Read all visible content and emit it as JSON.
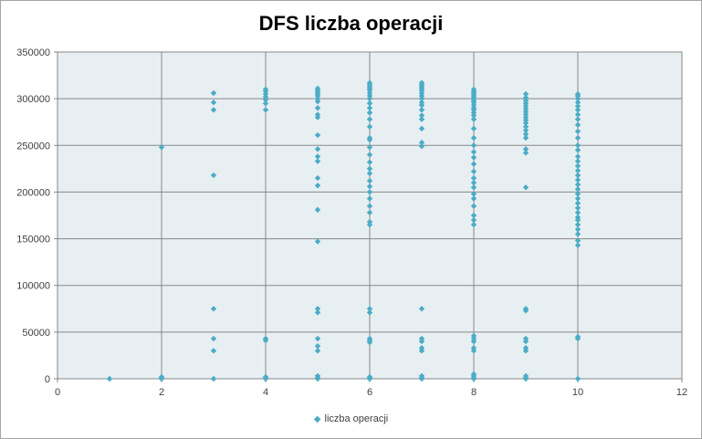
{
  "chart_data": {
    "type": "scatter",
    "title": "DFS liczba operacji",
    "xlabel": "",
    "ylabel": "",
    "xlim": [
      0,
      12
    ],
    "ylim": [
      0,
      350000
    ],
    "x_ticks": [
      "0",
      "2",
      "4",
      "6",
      "8",
      "10",
      "12"
    ],
    "y_ticks": [
      "0",
      "50000",
      "100000",
      "150000",
      "200000",
      "250000",
      "300000",
      "350000"
    ],
    "grid": true,
    "legend": "bottom",
    "marker_color": "#4bacc6",
    "series": [
      {
        "name": "liczba operacji",
        "points": [
          [
            1,
            0
          ],
          [
            2,
            0
          ],
          [
            2,
            1000
          ],
          [
            2,
            2000
          ],
          [
            2,
            248000
          ],
          [
            3,
            0
          ],
          [
            3,
            30000
          ],
          [
            3,
            43000
          ],
          [
            3,
            75000
          ],
          [
            3,
            218000
          ],
          [
            3,
            288000
          ],
          [
            3,
            296000
          ],
          [
            3,
            306000
          ],
          [
            4,
            0
          ],
          [
            4,
            1000
          ],
          [
            4,
            2000
          ],
          [
            4,
            41000
          ],
          [
            4,
            43000
          ],
          [
            4,
            288000
          ],
          [
            4,
            295000
          ],
          [
            4,
            299000
          ],
          [
            4,
            302000
          ],
          [
            4,
            305000
          ],
          [
            4,
            308000
          ],
          [
            4,
            310000
          ],
          [
            5,
            0
          ],
          [
            5,
            1000
          ],
          [
            5,
            3000
          ],
          [
            5,
            30000
          ],
          [
            5,
            35000
          ],
          [
            5,
            43000
          ],
          [
            5,
            71000
          ],
          [
            5,
            75000
          ],
          [
            5,
            147000
          ],
          [
            5,
            181000
          ],
          [
            5,
            207000
          ],
          [
            5,
            215000
          ],
          [
            5,
            233000
          ],
          [
            5,
            238000
          ],
          [
            5,
            246000
          ],
          [
            5,
            261000
          ],
          [
            5,
            280000
          ],
          [
            5,
            283000
          ],
          [
            5,
            290000
          ],
          [
            5,
            297000
          ],
          [
            5,
            300000
          ],
          [
            5,
            303000
          ],
          [
            5,
            305000
          ],
          [
            5,
            307000
          ],
          [
            5,
            309000
          ],
          [
            5,
            311000
          ],
          [
            6,
            0
          ],
          [
            6,
            1000
          ],
          [
            6,
            2000
          ],
          [
            6,
            39000
          ],
          [
            6,
            41000
          ],
          [
            6,
            43000
          ],
          [
            6,
            71000
          ],
          [
            6,
            75000
          ],
          [
            6,
            165000
          ],
          [
            6,
            168000
          ],
          [
            6,
            178000
          ],
          [
            6,
            185000
          ],
          [
            6,
            193000
          ],
          [
            6,
            200000
          ],
          [
            6,
            206000
          ],
          [
            6,
            212000
          ],
          [
            6,
            220000
          ],
          [
            6,
            225000
          ],
          [
            6,
            232000
          ],
          [
            6,
            240000
          ],
          [
            6,
            248000
          ],
          [
            6,
            256000
          ],
          [
            6,
            258000
          ],
          [
            6,
            270000
          ],
          [
            6,
            278000
          ],
          [
            6,
            285000
          ],
          [
            6,
            290000
          ],
          [
            6,
            295000
          ],
          [
            6,
            300000
          ],
          [
            6,
            303000
          ],
          [
            6,
            306000
          ],
          [
            6,
            309000
          ],
          [
            6,
            311000
          ],
          [
            6,
            313000
          ],
          [
            6,
            315000
          ],
          [
            6,
            317000
          ],
          [
            7,
            0
          ],
          [
            7,
            1000
          ],
          [
            7,
            3000
          ],
          [
            7,
            30000
          ],
          [
            7,
            33000
          ],
          [
            7,
            40000
          ],
          [
            7,
            43000
          ],
          [
            7,
            75000
          ],
          [
            7,
            249000
          ],
          [
            7,
            253000
          ],
          [
            7,
            268000
          ],
          [
            7,
            278000
          ],
          [
            7,
            282000
          ],
          [
            7,
            288000
          ],
          [
            7,
            293000
          ],
          [
            7,
            296000
          ],
          [
            7,
            300000
          ],
          [
            7,
            303000
          ],
          [
            7,
            306000
          ],
          [
            7,
            309000
          ],
          [
            7,
            311000
          ],
          [
            7,
            313000
          ],
          [
            7,
            315000
          ],
          [
            7,
            317000
          ],
          [
            8,
            0
          ],
          [
            8,
            1000
          ],
          [
            8,
            3000
          ],
          [
            8,
            5000
          ],
          [
            8,
            30000
          ],
          [
            8,
            33000
          ],
          [
            8,
            40000
          ],
          [
            8,
            43000
          ],
          [
            8,
            46000
          ],
          [
            8,
            165000
          ],
          [
            8,
            170000
          ],
          [
            8,
            175000
          ],
          [
            8,
            185000
          ],
          [
            8,
            193000
          ],
          [
            8,
            198000
          ],
          [
            8,
            205000
          ],
          [
            8,
            210000
          ],
          [
            8,
            215000
          ],
          [
            8,
            222000
          ],
          [
            8,
            230000
          ],
          [
            8,
            237000
          ],
          [
            8,
            243000
          ],
          [
            8,
            250000
          ],
          [
            8,
            258000
          ],
          [
            8,
            268000
          ],
          [
            8,
            278000
          ],
          [
            8,
            282000
          ],
          [
            8,
            285000
          ],
          [
            8,
            288000
          ],
          [
            8,
            290000
          ],
          [
            8,
            293000
          ],
          [
            8,
            296000
          ],
          [
            8,
            298000
          ],
          [
            8,
            300000
          ],
          [
            8,
            302000
          ],
          [
            8,
            304000
          ],
          [
            8,
            306000
          ],
          [
            8,
            308000
          ],
          [
            8,
            310000
          ],
          [
            9,
            0
          ],
          [
            9,
            1000
          ],
          [
            9,
            3000
          ],
          [
            9,
            30000
          ],
          [
            9,
            33000
          ],
          [
            9,
            40000
          ],
          [
            9,
            43000
          ],
          [
            9,
            73000
          ],
          [
            9,
            75000
          ],
          [
            9,
            205000
          ],
          [
            9,
            242000
          ],
          [
            9,
            246000
          ],
          [
            9,
            258000
          ],
          [
            9,
            262000
          ],
          [
            9,
            266000
          ],
          [
            9,
            270000
          ],
          [
            9,
            274000
          ],
          [
            9,
            277000
          ],
          [
            9,
            280000
          ],
          [
            9,
            283000
          ],
          [
            9,
            286000
          ],
          [
            9,
            289000
          ],
          [
            9,
            292000
          ],
          [
            9,
            295000
          ],
          [
            9,
            298000
          ],
          [
            9,
            301000
          ],
          [
            9,
            305000
          ],
          [
            10,
            0
          ],
          [
            10,
            43000
          ],
          [
            10,
            45000
          ],
          [
            10,
            143000
          ],
          [
            10,
            148000
          ],
          [
            10,
            155000
          ],
          [
            10,
            160000
          ],
          [
            10,
            165000
          ],
          [
            10,
            170000
          ],
          [
            10,
            173000
          ],
          [
            10,
            178000
          ],
          [
            10,
            183000
          ],
          [
            10,
            188000
          ],
          [
            10,
            193000
          ],
          [
            10,
            198000
          ],
          [
            10,
            203000
          ],
          [
            10,
            208000
          ],
          [
            10,
            213000
          ],
          [
            10,
            218000
          ],
          [
            10,
            223000
          ],
          [
            10,
            228000
          ],
          [
            10,
            233000
          ],
          [
            10,
            238000
          ],
          [
            10,
            245000
          ],
          [
            10,
            250000
          ],
          [
            10,
            258000
          ],
          [
            10,
            265000
          ],
          [
            10,
            272000
          ],
          [
            10,
            278000
          ],
          [
            10,
            283000
          ],
          [
            10,
            288000
          ],
          [
            10,
            292000
          ],
          [
            10,
            296000
          ],
          [
            10,
            300000
          ],
          [
            10,
            303000
          ],
          [
            10,
            305000
          ]
        ]
      }
    ]
  }
}
